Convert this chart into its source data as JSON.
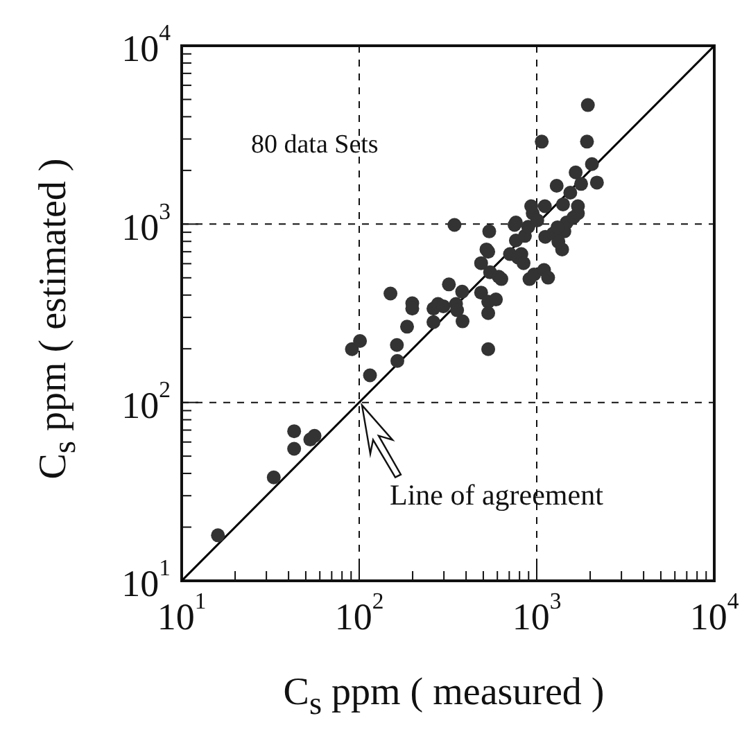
{
  "chart_data": {
    "type": "scatter",
    "xlabel": "C$_{s}$ ppm ( measured )",
    "ylabel": "C$_{s}$ ppm ( estimated )",
    "log": "xy",
    "xlim": [
      10,
      10000
    ],
    "ylim": [
      10,
      10000
    ],
    "xticks": [
      {
        "value": 10,
        "label": "10$^{1}$"
      },
      {
        "value": 20,
        "label": null
      },
      {
        "value": 30,
        "label": null
      },
      {
        "value": 40,
        "label": null
      },
      {
        "value": 50,
        "label": null
      },
      {
        "value": 60,
        "label": null
      },
      {
        "value": 70,
        "label": null
      },
      {
        "value": 80,
        "label": null
      },
      {
        "value": 90,
        "label": null
      },
      {
        "value": 100,
        "label": "10$^{2}$"
      },
      {
        "value": 200,
        "label": null
      },
      {
        "value": 300,
        "label": null
      },
      {
        "value": 400,
        "label": null
      },
      {
        "value": 500,
        "label": null
      },
      {
        "value": 600,
        "label": null
      },
      {
        "value": 700,
        "label": null
      },
      {
        "value": 800,
        "label": null
      },
      {
        "value": 900,
        "label": null
      },
      {
        "value": 1000,
        "label": "10$^{3}$"
      },
      {
        "value": 2000,
        "label": null
      },
      {
        "value": 3000,
        "label": null
      },
      {
        "value": 4000,
        "label": null
      },
      {
        "value": 5000,
        "label": null
      },
      {
        "value": 6000,
        "label": null
      },
      {
        "value": 7000,
        "label": null
      },
      {
        "value": 8000,
        "label": null
      },
      {
        "value": 9000,
        "label": null
      },
      {
        "value": 10000,
        "label": "10$^{4}$"
      }
    ],
    "yticks": [
      {
        "value": 10,
        "label": "10$^{1}$"
      },
      {
        "value": 20,
        "label": null
      },
      {
        "value": 30,
        "label": null
      },
      {
        "value": 40,
        "label": null
      },
      {
        "value": 50,
        "label": null
      },
      {
        "value": 60,
        "label": null
      },
      {
        "value": 70,
        "label": null
      },
      {
        "value": 80,
        "label": null
      },
      {
        "value": 90,
        "label": null
      },
      {
        "value": 100,
        "label": "10$^{2}$"
      },
      {
        "value": 200,
        "label": null
      },
      {
        "value": 300,
        "label": null
      },
      {
        "value": 400,
        "label": null
      },
      {
        "value": 500,
        "label": null
      },
      {
        "value": 600,
        "label": null
      },
      {
        "value": 700,
        "label": null
      },
      {
        "value": 800,
        "label": null
      },
      {
        "value": 900,
        "label": null
      },
      {
        "value": 1000,
        "label": "10$^{3}$"
      },
      {
        "value": 2000,
        "label": null
      },
      {
        "value": 3000,
        "label": null
      },
      {
        "value": 4000,
        "label": null
      },
      {
        "value": 5000,
        "label": null
      },
      {
        "value": 6000,
        "label": null
      },
      {
        "value": 7000,
        "label": null
      },
      {
        "value": 8000,
        "label": null
      },
      {
        "value": 9000,
        "label": null
      },
      {
        "value": 10000,
        "label": "10$^{4}$"
      }
    ],
    "grid": true,
    "legend": false,
    "marker": "circle",
    "annotations": [
      "80 data Sets",
      {
        "text": "Line of agreement",
        "x": 100,
        "y": 100
      }
    ],
    "series": [
      {
        "color": "#333333",
        "x": [
          16,
          33,
          43,
          43,
          53,
          56,
          91,
          101,
          115,
          150,
          163,
          164,
          186,
          199,
          199,
          262,
          262,
          278,
          298,
          320,
          351,
          356,
          382,
          380,
          344,
          486,
          486,
          521,
          533,
          533,
          533,
          540,
          546,
          589,
          611,
          632,
          707,
          750,
          763,
          786,
          819,
          843,
          858,
          895,
          949,
          910,
          966,
          1007,
          1067,
          1111,
          1099,
          1159,
          1117,
          1236,
          1295,
          1390,
          1406,
          1431,
          1473,
          1545,
          1610,
          1657,
          1706,
          1778,
          1919,
          1941,
          2046,
          2183,
          1324,
          931,
          763,
          533,
          1310,
          1706
        ],
        "values": [
          18,
          38,
          69,
          55,
          62,
          65,
          199,
          221,
          142,
          408,
          210,
          171,
          266,
          360,
          336,
          336,
          282,
          357,
          346,
          459,
          357,
          329,
          285,
          418,
          990,
          604,
          413,
          721,
          367,
          317,
          199,
          910,
          537,
          378,
          507,
          492,
          679,
          990,
          809,
          649,
          679,
          604,
          859,
          966,
          1150,
          492,
          522,
          1050,
          2900,
          1260,
          553,
          501,
          849,
          885,
          1640,
          721,
          1290,
          910,
          1020,
          1500,
          1090,
          1950,
          1150,
          1680,
          2900,
          4650,
          2170,
          1710,
          796,
          1260,
          1020,
          700,
          960,
          1260
        ]
      },
      {
        "type": "line",
        "color": "#000000",
        "marker": "none",
        "line_style": "solid",
        "x": [
          10,
          10000
        ],
        "values": [
          10,
          10000
        ]
      }
    ]
  }
}
